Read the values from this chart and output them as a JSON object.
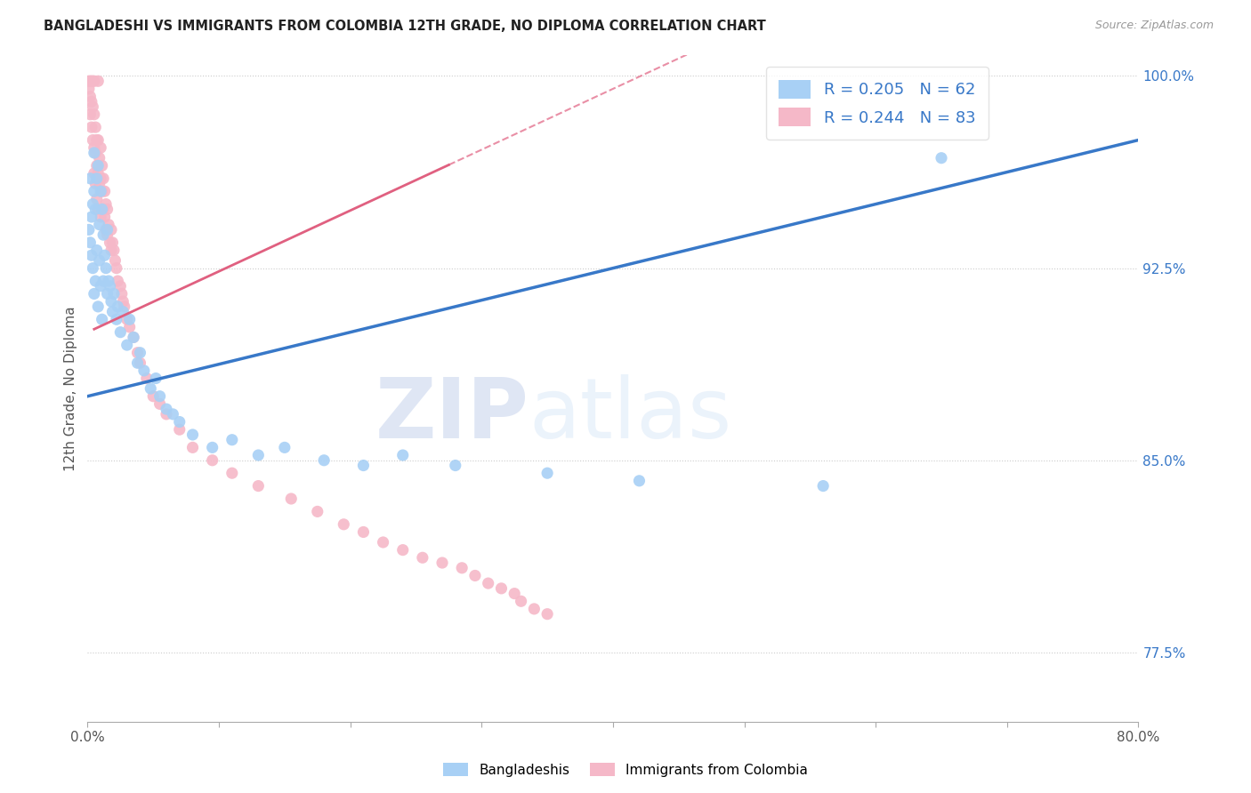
{
  "title": "BANGLADESHI VS IMMIGRANTS FROM COLOMBIA 12TH GRADE, NO DIPLOMA CORRELATION CHART",
  "source": "Source: ZipAtlas.com",
  "ylabel": "12th Grade, No Diploma",
  "x_min": 0.0,
  "x_max": 0.8,
  "y_min": 0.748,
  "y_max": 1.008,
  "y_ticks": [
    0.775,
    0.85,
    0.925,
    1.0
  ],
  "y_tick_labels": [
    "77.5%",
    "85.0%",
    "92.5%",
    "100.0%"
  ],
  "legend_r_blue": "R = 0.205",
  "legend_n_blue": "N = 62",
  "legend_r_pink": "R = 0.244",
  "legend_n_pink": "N = 83",
  "blue_color": "#a8d0f5",
  "pink_color": "#f5b8c8",
  "blue_line_color": "#3878c8",
  "pink_line_color": "#e06080",
  "legend_text_color": "#3878c8",
  "watermark_zip": "ZIP",
  "watermark_atlas": "atlas",
  "bangladeshi_x": [
    0.001,
    0.002,
    0.002,
    0.003,
    0.003,
    0.004,
    0.004,
    0.005,
    0.005,
    0.005,
    0.006,
    0.006,
    0.007,
    0.007,
    0.008,
    0.008,
    0.009,
    0.009,
    0.01,
    0.01,
    0.011,
    0.011,
    0.012,
    0.012,
    0.013,
    0.014,
    0.015,
    0.015,
    0.016,
    0.017,
    0.018,
    0.019,
    0.02,
    0.022,
    0.023,
    0.025,
    0.027,
    0.03,
    0.032,
    0.035,
    0.038,
    0.04,
    0.043,
    0.048,
    0.052,
    0.055,
    0.06,
    0.065,
    0.07,
    0.08,
    0.095,
    0.11,
    0.13,
    0.15,
    0.18,
    0.21,
    0.24,
    0.28,
    0.35,
    0.42,
    0.56,
    0.65
  ],
  "bangladeshi_y": [
    0.94,
    0.935,
    0.96,
    0.945,
    0.93,
    0.95,
    0.925,
    0.955,
    0.97,
    0.915,
    0.948,
    0.92,
    0.96,
    0.932,
    0.965,
    0.91,
    0.942,
    0.928,
    0.955,
    0.918,
    0.948,
    0.905,
    0.938,
    0.92,
    0.93,
    0.925,
    0.94,
    0.915,
    0.92,
    0.918,
    0.912,
    0.908,
    0.915,
    0.905,
    0.91,
    0.9,
    0.908,
    0.895,
    0.905,
    0.898,
    0.888,
    0.892,
    0.885,
    0.878,
    0.882,
    0.875,
    0.87,
    0.868,
    0.865,
    0.86,
    0.855,
    0.858,
    0.852,
    0.855,
    0.85,
    0.848,
    0.852,
    0.848,
    0.845,
    0.842,
    0.84,
    0.968
  ],
  "colombia_x": [
    0.001,
    0.001,
    0.002,
    0.002,
    0.002,
    0.003,
    0.003,
    0.003,
    0.004,
    0.004,
    0.004,
    0.005,
    0.005,
    0.005,
    0.005,
    0.006,
    0.006,
    0.006,
    0.007,
    0.007,
    0.007,
    0.008,
    0.008,
    0.008,
    0.008,
    0.009,
    0.009,
    0.01,
    0.01,
    0.01,
    0.011,
    0.011,
    0.012,
    0.012,
    0.013,
    0.013,
    0.014,
    0.014,
    0.015,
    0.015,
    0.016,
    0.017,
    0.018,
    0.018,
    0.019,
    0.02,
    0.021,
    0.022,
    0.023,
    0.025,
    0.026,
    0.027,
    0.028,
    0.03,
    0.032,
    0.035,
    0.038,
    0.04,
    0.045,
    0.05,
    0.055,
    0.06,
    0.07,
    0.08,
    0.095,
    0.11,
    0.13,
    0.155,
    0.175,
    0.195,
    0.21,
    0.225,
    0.24,
    0.255,
    0.27,
    0.285,
    0.295,
    0.305,
    0.315,
    0.325,
    0.33,
    0.34,
    0.35
  ],
  "colombia_y": [
    0.998,
    0.995,
    0.998,
    0.992,
    0.985,
    0.998,
    0.99,
    0.98,
    0.998,
    0.988,
    0.975,
    0.998,
    0.985,
    0.972,
    0.962,
    0.98,
    0.97,
    0.958,
    0.975,
    0.965,
    0.952,
    0.998,
    0.975,
    0.962,
    0.948,
    0.968,
    0.958,
    0.972,
    0.96,
    0.945,
    0.965,
    0.955,
    0.96,
    0.948,
    0.955,
    0.945,
    0.95,
    0.94,
    0.948,
    0.938,
    0.942,
    0.935,
    0.94,
    0.932,
    0.935,
    0.932,
    0.928,
    0.925,
    0.92,
    0.918,
    0.915,
    0.912,
    0.91,
    0.905,
    0.902,
    0.898,
    0.892,
    0.888,
    0.882,
    0.875,
    0.872,
    0.868,
    0.862,
    0.855,
    0.85,
    0.845,
    0.84,
    0.835,
    0.83,
    0.825,
    0.822,
    0.818,
    0.815,
    0.812,
    0.81,
    0.808,
    0.805,
    0.802,
    0.8,
    0.798,
    0.795,
    0.792,
    0.79
  ]
}
